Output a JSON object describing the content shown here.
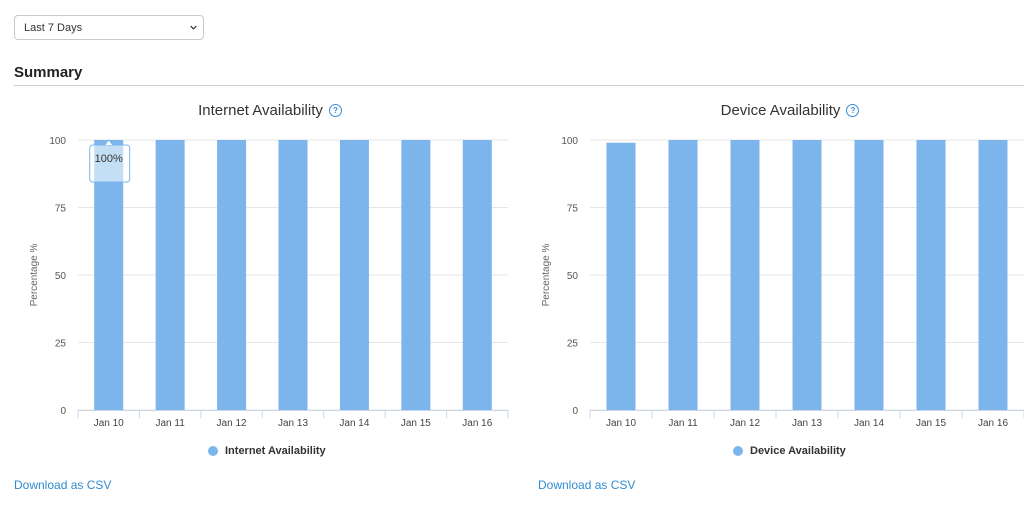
{
  "filter": {
    "selected": "Last 7 Days"
  },
  "summary": {
    "title": "Summary"
  },
  "colors": {
    "bar": "#7cb5ec",
    "link": "#2f8ccf",
    "help": "#3a8bd8"
  },
  "charts": [
    {
      "title": "Internet Availability",
      "legend": "Internet Availability",
      "download": "Download as CSV",
      "tooltip": "100%"
    },
    {
      "title": "Device Availability",
      "legend": "Device Availability",
      "download": "Download as CSV"
    }
  ],
  "chart_data": [
    {
      "type": "bar",
      "title": "Internet Availability",
      "ylabel": "Percentage %",
      "ylim": [
        0,
        100
      ],
      "yticks": [
        0,
        25,
        50,
        75,
        100
      ],
      "categories": [
        "Jan 10",
        "Jan 11",
        "Jan 12",
        "Jan 13",
        "Jan 14",
        "Jan 15",
        "Jan 16"
      ],
      "series": [
        {
          "name": "Internet Availability",
          "values": [
            100,
            100,
            100,
            100,
            100,
            100,
            100
          ]
        }
      ],
      "grid": true,
      "legend": "bottom-center"
    },
    {
      "type": "bar",
      "title": "Device Availability",
      "ylabel": "Percentage %",
      "ylim": [
        0,
        100
      ],
      "yticks": [
        0,
        25,
        50,
        75,
        100
      ],
      "categories": [
        "Jan 10",
        "Jan 11",
        "Jan 12",
        "Jan 13",
        "Jan 14",
        "Jan 15",
        "Jan 16"
      ],
      "series": [
        {
          "name": "Device Availability",
          "values": [
            99,
            100,
            100,
            100,
            100,
            100,
            100
          ]
        }
      ],
      "grid": true,
      "legend": "bottom-center"
    }
  ]
}
